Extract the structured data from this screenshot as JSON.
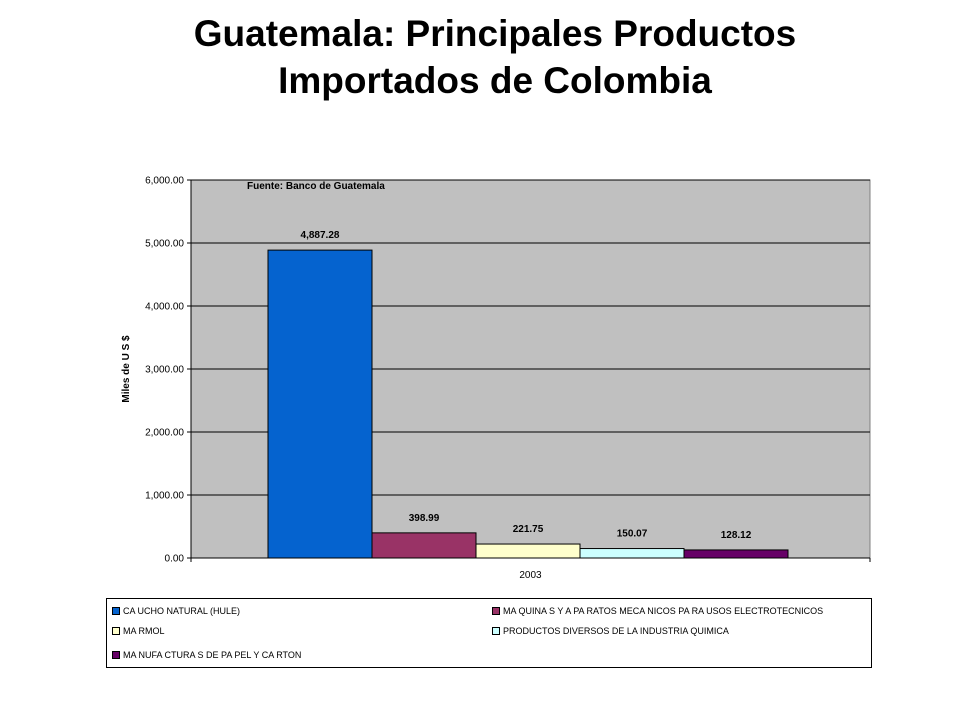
{
  "chart_data": {
    "type": "bar",
    "title_lines": [
      "Guatemala: Principales Productos",
      "Importados de Colombia"
    ],
    "ylabel": "Miles de U S $",
    "categories": [
      "2003"
    ],
    "ylim": [
      0,
      6000
    ],
    "yticks": [
      "0.00",
      "1,000.00",
      "2,000.00",
      "3,000.00",
      "4,000.00",
      "5,000.00",
      "6,000.00"
    ],
    "annotation": "Fuente: Banco de Guatemala",
    "plot_background": "#c0c0c0",
    "grid": true,
    "legend_position": "bottom",
    "series": [
      {
        "name": "CA UCHO NATURAL (HULE)",
        "values": [
          4887.28
        ],
        "label": "4,887.28",
        "color": "#0563cf"
      },
      {
        "name": "MA QUINA S Y A PA RATOS MECA NICOS PA RA USOS ELECTROTECNICOS",
        "values": [
          398.99
        ],
        "label": "398.99",
        "color": "#993366"
      },
      {
        "name": "MA RMOL",
        "values": [
          221.75
        ],
        "label": "221.75",
        "color": "#ffffcc"
      },
      {
        "name": "PRODUCTOS DIVERSOS DE LA INDUSTRIA QUIMICA",
        "values": [
          150.07
        ],
        "label": "150.07",
        "color": "#ccffff"
      },
      {
        "name": "MA NUFA CTURA S DE PA PEL Y CA RTON",
        "values": [
          128.12
        ],
        "label": "128.12",
        "color": "#660066"
      }
    ]
  }
}
